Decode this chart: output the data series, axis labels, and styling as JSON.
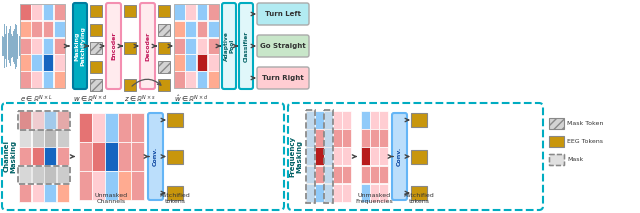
{
  "bg_color": "#ffffff",
  "gold": "#C8960C",
  "teal_dark": "#00ACC1",
  "teal_light_fill": "#E0F7FA",
  "pink_fill": "#FFEBEE",
  "pink_border": "#F48FB1",
  "blue_fill": "#BBDEFB",
  "blue_border": "#64B5F6",
  "arrow_color": "#444444",
  "grid1_colors": [
    [
      "#E57373",
      "#FFCDD2",
      "#90CAF9",
      "#EF9A9A"
    ],
    [
      "#FFAB91",
      "#EF9A9A",
      "#EF9A9A",
      "#90CAF9"
    ],
    [
      "#EF9A9A",
      "#FFCDD2",
      "#90CAF9",
      "#EF9A9A"
    ],
    [
      "#FFAB91",
      "#90CAF9",
      "#1565C0",
      "#FFCDD2"
    ],
    [
      "#EF9A9A",
      "#FFCDD2",
      "#90CAF9",
      "#FFAB91"
    ]
  ],
  "grid_rec_colors": [
    [
      "#90CAF9",
      "#FFCDD2",
      "#90CAF9",
      "#EF9A9A"
    ],
    [
      "#FFAB91",
      "#90CAF9",
      "#EF9A9A",
      "#90CAF9"
    ],
    [
      "#EF9A9A",
      "#90CAF9",
      "#FFCDD2",
      "#EF9A9A"
    ],
    [
      "#FFAB91",
      "#90CAF9",
      "#B71C1C",
      "#FFCDD2"
    ],
    [
      "#EF9A9A",
      "#FFCDD2",
      "#90CAF9",
      "#FFAB91"
    ]
  ],
  "cls_colors": [
    "#B2EBF2",
    "#C8E6C9",
    "#FFCDD2"
  ],
  "cls_labels": [
    "Turn Left",
    "Go Straight",
    "Turn Right"
  ],
  "chan_grid_colors": [
    [
      "#E57373",
      "#FFCDD2",
      "#90CAF9",
      "#EF9A9A"
    ],
    [
      "#DDDDDD",
      "#CCCCCC",
      "#BBBBBB",
      "#CCCCCC"
    ],
    [
      "#EF9A9A",
      "#E57373",
      "#1565C0",
      "#EF9A9A"
    ],
    [
      "#DDDDDD",
      "#CCCCCC",
      "#BBBBBB",
      "#CCCCCC"
    ],
    [
      "#EF9A9A",
      "#FFCDD2",
      "#90CAF9",
      "#FFAB91"
    ]
  ],
  "chan_unmasked_colors": [
    [
      "#E57373",
      "#FFCDD2",
      "#90CAF9",
      "#EF9A9A",
      "#EF9A9A"
    ],
    [
      "#EF9A9A",
      "#E57373",
      "#1565C0",
      "#EF9A9A",
      "#EF9A9A"
    ],
    [
      "#EF9A9A",
      "#FFCDD2",
      "#90CAF9",
      "#FFAB91",
      "#EF9A9A"
    ]
  ],
  "freq_col_colors": [
    [
      "#BBDEFB",
      "#BBDEFB",
      "#BBDEFB",
      "#BBDEFB",
      "#BBDEFB"
    ],
    [
      "#90CAF9",
      "#EF9A9A",
      "#B71C1C",
      "#EF9A9A",
      "#90CAF9"
    ],
    [
      "#BBDEFB",
      "#BBDEFB",
      "#BBDEFB",
      "#BBDEFB",
      "#BBDEFB"
    ],
    [
      "#FFCDD2",
      "#EF9A9A",
      "#FFCDD2",
      "#EF9A9A",
      "#FFCDD2"
    ],
    [
      "#FFCDD2",
      "#EF9A9A",
      "#FFCDD2",
      "#EF9A9A",
      "#FFCDD2"
    ]
  ],
  "freq_unmasked_colors": [
    [
      "#90CAF9",
      "#EF9A9A",
      "#B71C1C",
      "#EF9A9A",
      "#90CAF9"
    ],
    [
      "#FFCDD2",
      "#EF9A9A",
      "#FFCDD2",
      "#EF9A9A",
      "#FFCDD2"
    ],
    [
      "#FFCDD2",
      "#EF9A9A",
      "#FFCDD2",
      "#EF9A9A",
      "#FFCDD2"
    ]
  ]
}
